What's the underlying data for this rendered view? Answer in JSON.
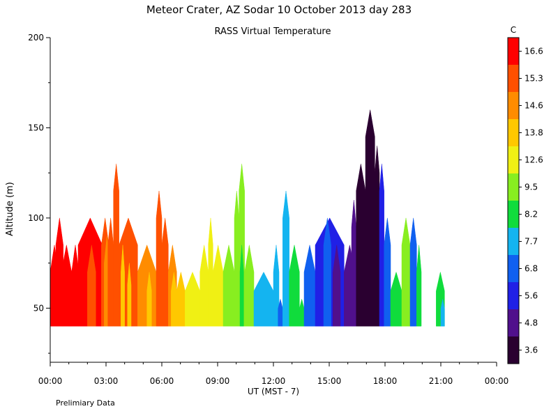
{
  "header": {
    "title": "Meteor Crater, AZ  Sodar  10 October 2013  day 283",
    "subtitle": "RASS Virtual Temperature",
    "footer_note": "Prelimiary Data"
  },
  "chart_data": {
    "type": "area",
    "title": "Meteor Crater, AZ  Sodar  10 October 2013  day 283",
    "subtitle": "RASS Virtual Temperature",
    "xlabel": "UT  (MST - 7)",
    "ylabel": "Altitude (m)",
    "xlim": [
      0,
      24
    ],
    "ylim": [
      20,
      200
    ],
    "x_ticks": [
      {
        "v": 0,
        "label": "00:00"
      },
      {
        "v": 3,
        "label": "03:00"
      },
      {
        "v": 6,
        "label": "06:00"
      },
      {
        "v": 9,
        "label": "09:00"
      },
      {
        "v": 12,
        "label": "12:00"
      },
      {
        "v": 15,
        "label": "15:00"
      },
      {
        "v": 18,
        "label": "18:00"
      },
      {
        "v": 21,
        "label": "21:00"
      },
      {
        "v": 24,
        "label": "00:00"
      }
    ],
    "y_ticks": [
      {
        "v": 50,
        "label": "50"
      },
      {
        "v": 100,
        "label": "100"
      },
      {
        "v": 150,
        "label": "150"
      },
      {
        "v": 200,
        "label": "200"
      }
    ],
    "colorbar": {
      "unit": "C",
      "levels": [
        "3.6",
        "4.8",
        "5.6",
        "6.8",
        "7.7",
        "8.2",
        "9.5",
        "12.6",
        "13.8",
        "14.6",
        "15.3",
        "16.6"
      ],
      "colors": [
        "#2a0030",
        "#50108c",
        "#2020e6",
        "#1060f0",
        "#14b4f0",
        "#10dc3c",
        "#88ee20",
        "#f0f014",
        "#ffc800",
        "#ff8c00",
        "#ff5000",
        "#ff0000"
      ]
    },
    "columns": [
      {
        "t0": 0.0,
        "t1": 0.45,
        "top": 85,
        "c": 11
      },
      {
        "t0": 0.3,
        "t1": 0.7,
        "top": 100,
        "c": 11
      },
      {
        "t0": 0.6,
        "t1": 1.15,
        "top": 85,
        "c": 11
      },
      {
        "t0": 1.0,
        "t1": 1.15,
        "top": 70,
        "c": 11
      },
      {
        "t0": 1.15,
        "t1": 1.55,
        "top": 85,
        "c": 11
      },
      {
        "t0": 1.5,
        "t1": 2.8,
        "top": 100,
        "c": 11
      },
      {
        "t0": 2.0,
        "t1": 2.45,
        "top": 85,
        "c": 10
      },
      {
        "t0": 2.75,
        "t1": 3.15,
        "top": 100,
        "c": 10
      },
      {
        "t0": 2.9,
        "t1": 3.2,
        "top": 90,
        "c": 9
      },
      {
        "t0": 3.1,
        "t1": 3.4,
        "top": 100,
        "c": 10
      },
      {
        "t0": 3.4,
        "t1": 3.7,
        "top": 130,
        "c": 10
      },
      {
        "t0": 3.7,
        "t1": 4.7,
        "top": 100,
        "c": 10
      },
      {
        "t0": 3.8,
        "t1": 4.0,
        "top": 85,
        "c": 8
      },
      {
        "t0": 4.15,
        "t1": 4.35,
        "top": 75,
        "c": 8
      },
      {
        "t0": 4.7,
        "t1": 5.7,
        "top": 85,
        "c": 9
      },
      {
        "t0": 5.2,
        "t1": 5.45,
        "top": 70,
        "c": 8
      },
      {
        "t0": 5.7,
        "t1": 6.0,
        "top": 115,
        "c": 10
      },
      {
        "t0": 6.0,
        "t1": 6.35,
        "top": 100,
        "c": 10
      },
      {
        "t0": 6.35,
        "t1": 6.8,
        "top": 85,
        "c": 9
      },
      {
        "t0": 6.5,
        "t1": 6.8,
        "top": 70,
        "c": 8
      },
      {
        "t0": 6.8,
        "t1": 7.25,
        "top": 70,
        "c": 8
      },
      {
        "t0": 7.25,
        "t1": 8.05,
        "top": 70,
        "c": 7
      },
      {
        "t0": 8.05,
        "t1": 8.5,
        "top": 85,
        "c": 7
      },
      {
        "t0": 8.5,
        "t1": 8.75,
        "top": 100,
        "c": 7
      },
      {
        "t0": 8.75,
        "t1": 9.3,
        "top": 85,
        "c": 7
      },
      {
        "t0": 9.3,
        "t1": 9.9,
        "top": 85,
        "c": 6
      },
      {
        "t0": 9.9,
        "t1": 10.15,
        "top": 115,
        "c": 6
      },
      {
        "t0": 10.15,
        "t1": 10.45,
        "top": 130,
        "c": 6
      },
      {
        "t0": 10.2,
        "t1": 10.4,
        "top": 85,
        "c": 5
      },
      {
        "t0": 10.45,
        "t1": 10.95,
        "top": 85,
        "c": 6
      },
      {
        "t0": 10.95,
        "t1": 12.0,
        "top": 70,
        "c": 4
      },
      {
        "t0": 12.0,
        "t1": 12.3,
        "top": 85,
        "c": 4
      },
      {
        "t0": 12.25,
        "t1": 12.5,
        "top": 55,
        "c": 3
      },
      {
        "t0": 12.5,
        "t1": 12.85,
        "top": 115,
        "c": 4
      },
      {
        "t0": 12.85,
        "t1": 13.4,
        "top": 85,
        "c": 5
      },
      {
        "t0": 13.4,
        "t1": 13.65,
        "top": 55,
        "c": 5
      },
      {
        "t0": 13.65,
        "t1": 14.25,
        "top": 85,
        "c": 3
      },
      {
        "t0": 14.25,
        "t1": 15.8,
        "top": 100,
        "c": 2
      },
      {
        "t0": 14.7,
        "t1": 15.1,
        "top": 100,
        "c": 3
      },
      {
        "t0": 15.2,
        "t1": 15.6,
        "top": 85,
        "c": 1
      },
      {
        "t0": 15.8,
        "t1": 16.4,
        "top": 85,
        "c": 1
      },
      {
        "t0": 16.2,
        "t1": 16.45,
        "top": 110,
        "c": 1
      },
      {
        "t0": 16.45,
        "t1": 16.95,
        "top": 130,
        "c": 0
      },
      {
        "t0": 16.95,
        "t1": 17.45,
        "top": 160,
        "c": 0
      },
      {
        "t0": 17.45,
        "t1": 17.7,
        "top": 140,
        "c": 0
      },
      {
        "t0": 17.7,
        "t1": 17.95,
        "top": 130,
        "c": 2
      },
      {
        "t0": 17.95,
        "t1": 18.3,
        "top": 100,
        "c": 3
      },
      {
        "t0": 18.3,
        "t1": 18.9,
        "top": 70,
        "c": 5
      },
      {
        "t0": 18.9,
        "t1": 19.35,
        "top": 100,
        "c": 6
      },
      {
        "t0": 19.35,
        "t1": 19.7,
        "top": 100,
        "c": 3
      },
      {
        "t0": 19.7,
        "t1": 19.95,
        "top": 85,
        "c": 5
      },
      {
        "t0": 20.75,
        "t1": 21.2,
        "top": 70,
        "c": 5
      },
      {
        "t0": 21.0,
        "t1": 21.2,
        "top": 55,
        "c": 4
      }
    ]
  }
}
